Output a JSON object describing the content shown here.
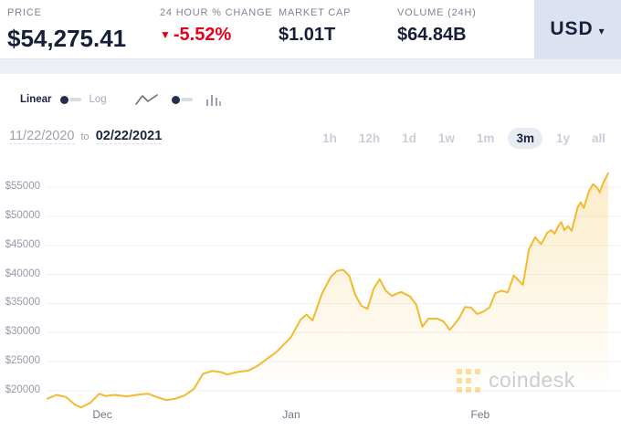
{
  "header": {
    "price": {
      "label": "PRICE",
      "value": "$54,275.41"
    },
    "change": {
      "label": "24 HOUR % CHANGE",
      "arrow": "▼",
      "value": "-5.52%"
    },
    "market_cap": {
      "label": "MARKET CAP",
      "value": "$1.01T"
    },
    "volume": {
      "label": "VOLUME (24H)",
      "value": "$64.84B"
    },
    "currency": {
      "value": "USD",
      "caret": "▾"
    }
  },
  "toolbar": {
    "scale_toggle": {
      "left": "Linear",
      "right": "Log",
      "selected": "Linear"
    },
    "chart_type_toggle": {
      "left_icon": "line-chart-icon",
      "right_icon": "bar-chart-icon",
      "selected": "line"
    }
  },
  "date_range": {
    "start": "11/22/2020",
    "separator": "to",
    "end": "02/22/2021"
  },
  "periods": {
    "options": [
      "1h",
      "12h",
      "1d",
      "1w",
      "1m",
      "3m",
      "1y",
      "all"
    ],
    "selected": "3m"
  },
  "watermark": {
    "brand": "coindesk"
  },
  "colors": {
    "line": "#f3ba2f",
    "negative": "#e5001a",
    "navy": "#17213c",
    "currency_bg": "#dce2f1"
  },
  "chart_data": {
    "type": "area",
    "x_unit": "days_since_11/22/2020",
    "ylim": [
      17000,
      57500
    ],
    "y_ticks": [
      20000,
      25000,
      30000,
      35000,
      40000,
      45000,
      50000,
      55000
    ],
    "y_tick_prefix": "$",
    "x_ticks": [
      {
        "day": 9,
        "label": "Dec"
      },
      {
        "day": 40,
        "label": "Jan"
      },
      {
        "day": 71,
        "label": "Feb"
      }
    ],
    "grid": true,
    "legend": false,
    "line_color": "#f3ba2f",
    "fill": "vertical-gradient-fade",
    "points": [
      [
        0,
        18650
      ],
      [
        1.5,
        19300
      ],
      [
        3,
        18950
      ],
      [
        4.5,
        17600
      ],
      [
        5.5,
        17150
      ],
      [
        7,
        17900
      ],
      [
        8.5,
        19500
      ],
      [
        9.5,
        19100
      ],
      [
        11,
        19300
      ],
      [
        13,
        19050
      ],
      [
        15,
        19350
      ],
      [
        16.5,
        19500
      ],
      [
        18,
        18900
      ],
      [
        19.5,
        18400
      ],
      [
        21,
        18650
      ],
      [
        22.5,
        19200
      ],
      [
        24,
        20300
      ],
      [
        25.5,
        22900
      ],
      [
        27,
        23400
      ],
      [
        28.5,
        23200
      ],
      [
        29.5,
        22800
      ],
      [
        31,
        23200
      ],
      [
        33,
        23500
      ],
      [
        34.5,
        24300
      ],
      [
        36,
        25500
      ],
      [
        37.5,
        26600
      ],
      [
        39,
        28200
      ],
      [
        40,
        29300
      ],
      [
        41.5,
        32200
      ],
      [
        42.5,
        33100
      ],
      [
        43.5,
        32100
      ],
      [
        45,
        36600
      ],
      [
        46.5,
        39600
      ],
      [
        47.5,
        40600
      ],
      [
        48.5,
        40800
      ],
      [
        49.5,
        39800
      ],
      [
        50.5,
        36500
      ],
      [
        51.5,
        34600
      ],
      [
        52.5,
        34100
      ],
      [
        53.5,
        37500
      ],
      [
        54.5,
        39200
      ],
      [
        55.5,
        37200
      ],
      [
        56.5,
        36300
      ],
      [
        58,
        37000
      ],
      [
        59.5,
        36200
      ],
      [
        60.5,
        34800
      ],
      [
        61.5,
        31000
      ],
      [
        62.5,
        32400
      ],
      [
        64,
        32400
      ],
      [
        65,
        31900
      ],
      [
        66,
        30450
      ],
      [
        67.5,
        32400
      ],
      [
        68.5,
        34400
      ],
      [
        69.5,
        34300
      ],
      [
        70.5,
        33200
      ],
      [
        71.5,
        33600
      ],
      [
        72.5,
        34300
      ],
      [
        73.5,
        36800
      ],
      [
        74.5,
        37200
      ],
      [
        75.5,
        36900
      ],
      [
        76.5,
        39800
      ],
      [
        78,
        38200
      ],
      [
        79,
        44300
      ],
      [
        80,
        46400
      ],
      [
        81,
        45200
      ],
      [
        82,
        47200
      ],
      [
        82.7,
        47600
      ],
      [
        83.2,
        47000
      ],
      [
        83.8,
        48300
      ],
      [
        84.3,
        49000
      ],
      [
        84.8,
        47600
      ],
      [
        85.4,
        48300
      ],
      [
        86,
        47500
      ],
      [
        87,
        51600
      ],
      [
        87.5,
        52400
      ],
      [
        88,
        51400
      ],
      [
        88.8,
        54200
      ],
      [
        89.5,
        55500
      ],
      [
        90.2,
        54900
      ],
      [
        90.6,
        54100
      ],
      [
        91.2,
        55800
      ],
      [
        92,
        57400
      ]
    ]
  }
}
